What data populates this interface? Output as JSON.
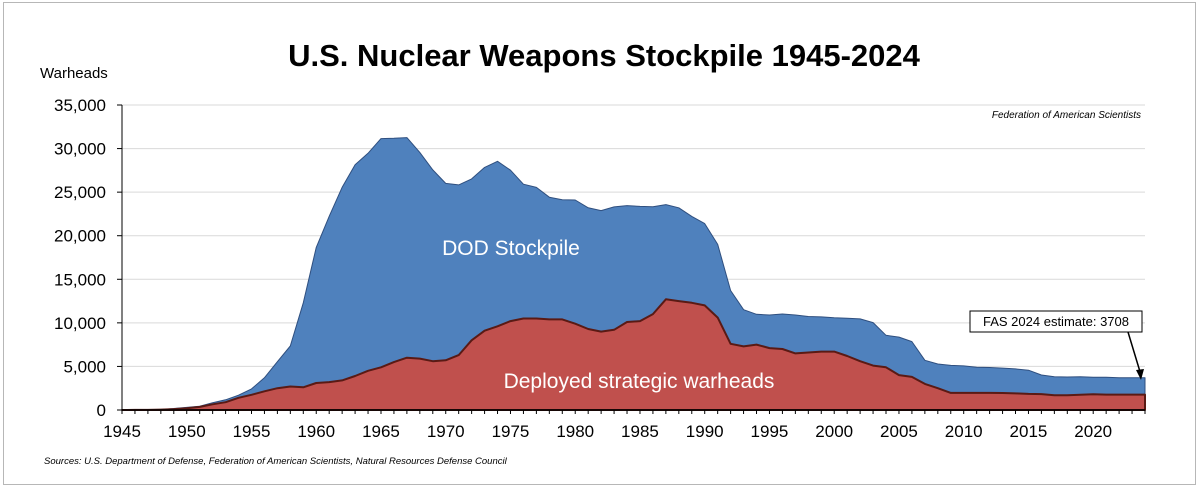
{
  "chart_data": {
    "type": "area",
    "title": "U.S. Nuclear Weapons Stockpile 1945-2024",
    "ylabel": "Warheads",
    "xlabel": "",
    "xlim": [
      1945,
      2024
    ],
    "ylim": [
      0,
      35000
    ],
    "y_ticks": [
      0,
      5000,
      10000,
      15000,
      20000,
      25000,
      30000,
      35000
    ],
    "y_tick_labels": [
      "0",
      "5,000",
      "10,000",
      "15,000",
      "20,000",
      "25,000",
      "30,000",
      "35,000"
    ],
    "x_ticks": [
      1945,
      1950,
      1955,
      1960,
      1965,
      1970,
      1975,
      1980,
      1985,
      1990,
      1995,
      2000,
      2005,
      2010,
      2015,
      2020
    ],
    "x_tick_labels": [
      "1945",
      "1950",
      "1955",
      "1960",
      "1965",
      "1970",
      "1975",
      "1980",
      "1985",
      "1990",
      "1995",
      "2000",
      "2005",
      "2010",
      "2015",
      "2020"
    ],
    "x": [
      1945,
      1946,
      1947,
      1948,
      1949,
      1950,
      1951,
      1952,
      1953,
      1954,
      1955,
      1956,
      1957,
      1958,
      1959,
      1960,
      1961,
      1962,
      1963,
      1964,
      1965,
      1966,
      1967,
      1968,
      1969,
      1970,
      1971,
      1972,
      1973,
      1974,
      1975,
      1976,
      1977,
      1978,
      1979,
      1980,
      1981,
      1982,
      1983,
      1984,
      1985,
      1986,
      1987,
      1988,
      1989,
      1990,
      1991,
      1992,
      1993,
      1994,
      1995,
      1996,
      1997,
      1998,
      1999,
      2000,
      2001,
      2002,
      2003,
      2004,
      2005,
      2006,
      2007,
      2008,
      2009,
      2010,
      2011,
      2012,
      2013,
      2014,
      2015,
      2016,
      2017,
      2018,
      2019,
      2020,
      2021,
      2022,
      2023,
      2024
    ],
    "series": [
      {
        "name": "DOD Stockpile",
        "color": "#4f81bd",
        "values": [
          2,
          9,
          13,
          50,
          170,
          299,
          438,
          841,
          1169,
          1703,
          2422,
          3692,
          5543,
          7345,
          12298,
          18638,
          22229,
          25540,
          28133,
          29463,
          31139,
          31175,
          31255,
          29561,
          27552,
          26008,
          25830,
          26516,
          27835,
          28537,
          27519,
          25914,
          25542,
          24418,
          24138,
          24104,
          23208,
          22886,
          23305,
          23459,
          23368,
          23317,
          23575,
          23205,
          22217,
          21392,
          19008,
          13708,
          11511,
          10979,
          10904,
          11011,
          10903,
          10732,
          10685,
          10577,
          10526,
          10457,
          10027,
          8570,
          8360,
          7853,
          5709,
          5273,
          5113,
          5066,
          4897,
          4881,
          4804,
          4717,
          4571,
          4018,
          3822,
          3785,
          3805,
          3750,
          3750,
          3708,
          3708,
          3708
        ]
      },
      {
        "name": "Deployed strategic warheads",
        "color": "#c0504d",
        "values": [
          2,
          9,
          13,
          50,
          100,
          200,
          350,
          650,
          900,
          1400,
          1750,
          2150,
          2500,
          2700,
          2600,
          3100,
          3200,
          3400,
          3900,
          4500,
          4900,
          5500,
          6000,
          5900,
          5600,
          5700,
          6300,
          8000,
          9100,
          9600,
          10200,
          10500,
          10500,
          10400,
          10400,
          9900,
          9300,
          9000,
          9200,
          10100,
          10200,
          11000,
          12700,
          12500,
          12300,
          12000,
          10600,
          7600,
          7300,
          7500,
          7100,
          7000,
          6500,
          6600,
          6700,
          6700,
          6200,
          5600,
          5100,
          4900,
          4000,
          3800,
          3000,
          2500,
          1968,
          1968,
          1968,
          1968,
          1950,
          1900,
          1850,
          1820,
          1700,
          1700,
          1750,
          1800,
          1770,
          1770,
          1770,
          1770
        ]
      }
    ],
    "series_labels": {
      "stockpile": "DOD Stockpile",
      "deployed": "Deployed strategic warheads"
    },
    "annotations": {
      "credit": "Federation of American Scientists",
      "estimate": "FAS 2024 estimate: 3708",
      "sources": "Sources: U.S. Department of Defense, Federation of American Scientists, Natural Resources Defense Council"
    }
  }
}
